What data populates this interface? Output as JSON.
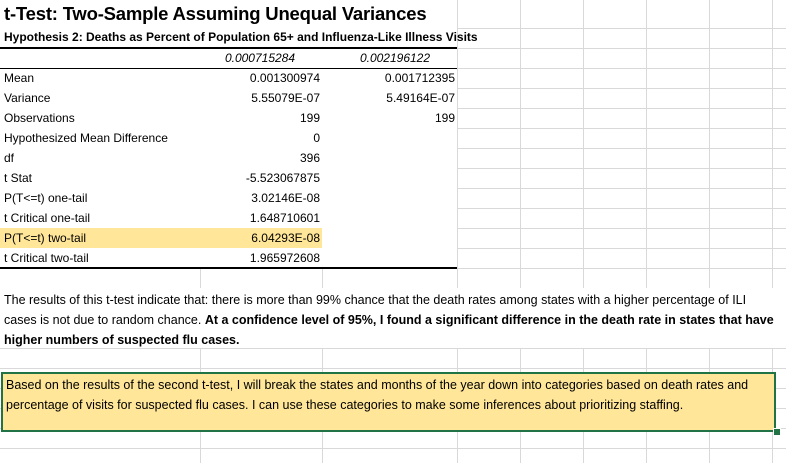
{
  "sheet": {
    "title": "t-Test: Two-Sample Assuming Unequal Variances",
    "subtitle": "Hypothesis 2: Deaths as Percent of Population 65+ and Influenza-Like Illness Visits",
    "column_headers": [
      "0.000715284",
      "0.002196122"
    ],
    "rows": [
      {
        "label": "Mean",
        "v1": "0.001300974",
        "v2": "0.001712395"
      },
      {
        "label": "Variance",
        "v1": "5.55079E-07",
        "v2": "5.49164E-07"
      },
      {
        "label": "Observations",
        "v1": "199",
        "v2": "199"
      },
      {
        "label": "Hypothesized Mean Difference",
        "v1": "0",
        "v2": ""
      },
      {
        "label": "df",
        "v1": "396",
        "v2": ""
      },
      {
        "label": "t Stat",
        "v1": "-5.523067875",
        "v2": ""
      },
      {
        "label": "P(T<=t) one-tail",
        "v1": "3.02146E-08",
        "v2": ""
      },
      {
        "label": "t Critical one-tail",
        "v1": "1.648710601",
        "v2": ""
      },
      {
        "label": "P(T<=t) two-tail",
        "v1": "6.04293E-08",
        "v2": ""
      },
      {
        "label": "t Critical two-tail",
        "v1": "1.965972608",
        "v2": ""
      }
    ],
    "highlighted_row_index": 8,
    "highlight_color": "#ffe699",
    "selection_color": "#217346"
  },
  "paragraph": {
    "plain": "The results of this t-test indicate that: there is more than 99% chance that the death rates among states with a higher percentage of ILI cases is not due to random chance. ",
    "bold": "At a confidence level of 95%, I found a significant difference in the death rate in states that have higher numbers of suspected flu cases."
  },
  "note": {
    "text": "Based on the results of the second t-test, I will break the states and months of the year down into categories based on death rates and percentage of visits for suspected flu cases. I can use these categories to make some inferences about prioritizing staffing."
  }
}
